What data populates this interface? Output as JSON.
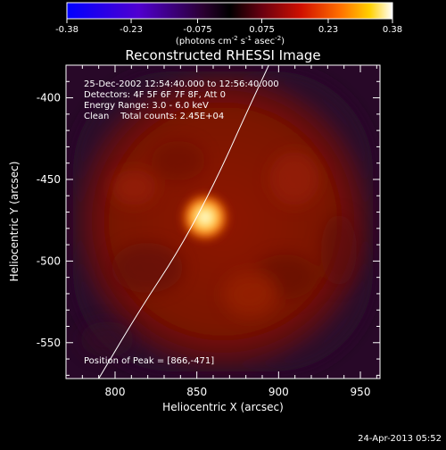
{
  "chart_data": {
    "type": "heatmap",
    "title": "Reconstructed RHESSI Image",
    "xlabel": "Heliocentric X (arcsec)",
    "ylabel": "Heliocentric Y (arcsec)",
    "xlim": [
      770,
      962
    ],
    "ylim": [
      -572,
      -380
    ],
    "xticks": [
      800,
      850,
      900,
      950
    ],
    "yticks": [
      -400,
      -450,
      -500,
      -550
    ],
    "colorbar": {
      "min": -0.38,
      "max": 0.38,
      "ticks": [
        "-0.38",
        "-0.23",
        "-0.075",
        "0.075",
        "0.23",
        "0.38"
      ],
      "label_prefix": "(photons cm",
      "label_sup1": "-2",
      "label_mid1": " s",
      "label_sup2": "-1",
      "label_mid2": " asec",
      "label_sup3": "-2",
      "label_suffix": ")"
    },
    "annotations": {
      "time_range": "25-Dec-2002 12:54:40.000 to 12:56:40.000",
      "detectors": "Detectors: 4F 5F 6F 7F 8F, Att 0",
      "energy": "Energy Range: 3.0 - 6.0 keV",
      "clean": "Clean    Total counts: 2.45E+04",
      "peak": "Position of Peak = [866,-471]"
    },
    "peak": {
      "x": 866,
      "y": -471
    },
    "limb": [
      [
        790,
        -572
      ],
      [
        815,
        -530
      ],
      [
        840,
        -492
      ],
      [
        862,
        -450
      ],
      [
        880,
        -410
      ],
      [
        894,
        -380
      ]
    ],
    "colors": {
      "background": "#000000",
      "emission": "#8a1500",
      "peak": "#fffbd0",
      "limb": "#ffffff"
    }
  },
  "footer": {
    "timestamp": "24-Apr-2013 05:52"
  }
}
